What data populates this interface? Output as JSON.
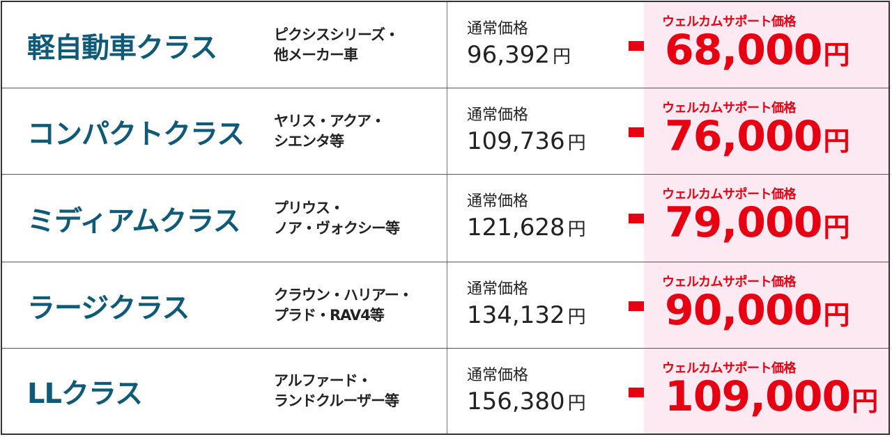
{
  "colors": {
    "class_text": "#0e5a78",
    "accent_red": "#e60012",
    "welcome_bg": "#fce9f1"
  },
  "normal_label": "通常価格",
  "welcome_label": "ウェルカムサポート価格",
  "yen": "円",
  "rows": [
    {
      "class_name": "軽自動車クラス",
      "models_line1": "ピクシスシリーズ・",
      "models_line2": "他メーカー車",
      "normal_price": "96,392",
      "welcome_price": "68,000"
    },
    {
      "class_name": "コンパクトクラス",
      "models_line1": "ヤリス・アクア・",
      "models_line2": "シエンタ等",
      "normal_price": "109,736",
      "welcome_price": "76,000"
    },
    {
      "class_name": "ミディアムクラス",
      "models_line1": "プリウス・",
      "models_line2": "ノア・ヴォクシー等",
      "normal_price": "121,628",
      "welcome_price": "79,000"
    },
    {
      "class_name": "ラージクラス",
      "models_line1": "クラウン・ハリアー・",
      "models_line2": "プラド・RAV4等",
      "normal_price": "134,132",
      "welcome_price": "90,000"
    },
    {
      "class_name": "LLクラス",
      "models_line1": "アルファード・",
      "models_line2": "ランドクルーザー等",
      "normal_price": "156,380",
      "welcome_price": "109,000"
    }
  ]
}
